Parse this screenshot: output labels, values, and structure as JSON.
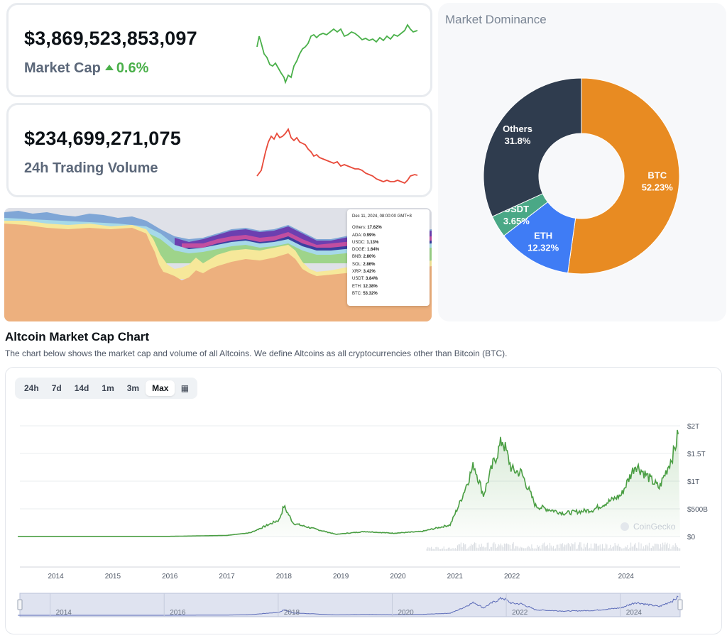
{
  "market_cap": {
    "value": "$3,869,523,853,097",
    "label": "Market Cap",
    "change": "0.6%",
    "color": "#4ab04a"
  },
  "trading_volume": {
    "value": "$234,699,271,075",
    "label": "24h Trading Volume",
    "color": "#e84a3a"
  },
  "stacked_tooltip": {
    "date": "Dec 11, 2024, 08:00:00 GMT+8",
    "rows": [
      {
        "name": "Others",
        "value": "17.62%"
      },
      {
        "name": "ADA",
        "value": "0.99%"
      },
      {
        "name": "USDC",
        "value": "1.13%"
      },
      {
        "name": "DOGE",
        "value": "1.64%"
      },
      {
        "name": "BNB",
        "value": "2.80%"
      },
      {
        "name": "SOL",
        "value": "2.86%"
      },
      {
        "name": "XRP",
        "value": "3.42%"
      },
      {
        "name": "USDT",
        "value": "3.84%"
      },
      {
        "name": "ETH",
        "value": "12.38%"
      },
      {
        "name": "BTC",
        "value": "53.32%"
      }
    ]
  },
  "dominance": {
    "title": "Market Dominance",
    "slices": [
      {
        "name": "BTC",
        "label": "52.23%",
        "value": 52.23,
        "color": "#e88b22"
      },
      {
        "name": "ETH",
        "label": "12.32%",
        "value": 12.32,
        "color": "#3f7cf5"
      },
      {
        "name": "USDT",
        "label": "3.65%",
        "value": 3.65,
        "color": "#4aa886"
      },
      {
        "name": "Others",
        "label": "31.8%",
        "value": 31.8,
        "color": "#2f3c4e"
      }
    ]
  },
  "altcoin": {
    "title": "Altcoin Market Cap Chart",
    "description": "The chart below shows the market cap and volume of all Altcoins. We define Altcoins as all cryptocurrencies other than Bitcoin (BTC).",
    "tabs": [
      "24h",
      "7d",
      "14d",
      "1m",
      "3m",
      "Max"
    ],
    "active_tab": "Max",
    "watermark": "CoinGecko",
    "line_color": "#4a9e43"
  },
  "chart_data": {
    "type": "area",
    "x": [
      "2013-05",
      "2014-01",
      "2015-01",
      "2016-01",
      "2017-01",
      "2017-06",
      "2017-12",
      "2018-01",
      "2018-03",
      "2018-06",
      "2018-12",
      "2019-06",
      "2019-12",
      "2020-06",
      "2020-12",
      "2021-02",
      "2021-05",
      "2021-07",
      "2021-09",
      "2021-11",
      "2022-01",
      "2022-03",
      "2022-06",
      "2022-12",
      "2023-06",
      "2023-12",
      "2024-03",
      "2024-08",
      "2024-11",
      "2024-12"
    ],
    "series": [
      {
        "values": [
          0.001,
          0.003,
          0.002,
          0.003,
          0.02,
          0.07,
          0.3,
          0.55,
          0.24,
          0.17,
          0.04,
          0.09,
          0.06,
          0.09,
          0.21,
          0.6,
          1.3,
          0.75,
          1.3,
          1.75,
          1.2,
          1.15,
          0.55,
          0.42,
          0.48,
          0.75,
          1.3,
          0.88,
          1.5,
          1.85
        ]
      }
    ],
    "categories": [
      "2014",
      "2015",
      "2016",
      "2017",
      "2018",
      "2019",
      "2020",
      "2021",
      "2022",
      "2024"
    ],
    "navigator_labels": [
      "2014",
      "2016",
      "2018",
      "2020",
      "2022",
      "2024"
    ],
    "y_ticks": [
      "$0",
      "$500B",
      "$1T",
      "$1.5T",
      "$2T"
    ],
    "ylim": [
      0,
      2
    ],
    "grid": true
  }
}
